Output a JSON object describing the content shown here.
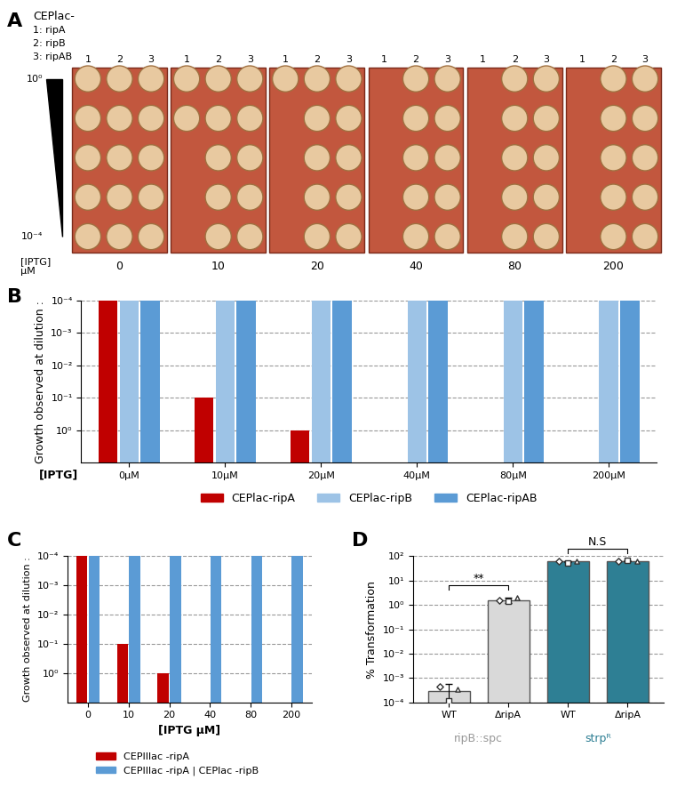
{
  "panel_A": {
    "panel_label": "A",
    "header": "CEPlac-",
    "strains": [
      "1: ripA",
      "2: ripB",
      "3: ripAB"
    ],
    "column_numbers": [
      "1",
      "2",
      "3"
    ],
    "dilution_labels": [
      "10⁰",
      "10⁻⁴"
    ],
    "iptg_label": "[IPTG]\nµM",
    "iptg": [
      0,
      10,
      20,
      40,
      80,
      200
    ]
  },
  "chart_data": [
    {
      "type": "bar",
      "panel_label": "B",
      "categories": [
        "0µM",
        "10µM",
        "20µM",
        "40µM",
        "80µM",
        "200µM"
      ],
      "x_label": "[IPTG]",
      "y_label": "Growth observed at dilution :",
      "log": "y",
      "ylim": [
        10,
        0.0001
      ],
      "yticks": [
        {
          "value": 1,
          "label": "10⁰"
        },
        {
          "value": 0.1,
          "label": "10⁻¹"
        },
        {
          "value": 0.01,
          "label": "10⁻²"
        },
        {
          "value": 0.001,
          "label": "10⁻³"
        },
        {
          "value": 0.0001,
          "label": "10⁻⁴"
        }
      ],
      "grid": true,
      "legend": "bottom",
      "series": [
        {
          "name": "CEPlac-ripA",
          "color": "#c00000",
          "values": [
            0.0001,
            0.1,
            1,
            null,
            null,
            null
          ]
        },
        {
          "name": "CEPlac-ripB",
          "color": "#9dc3e6",
          "values": [
            0.0001,
            0.0001,
            0.0001,
            0.0001,
            0.0001,
            0.0001
          ]
        },
        {
          "name": "CEPlac-ripAB",
          "color": "#5b9bd5",
          "values": [
            0.0001,
            0.0001,
            0.0001,
            0.0001,
            0.0001,
            0.0001
          ]
        }
      ]
    },
    {
      "type": "bar",
      "panel_label": "C",
      "categories": [
        "0",
        "10",
        "20",
        "40",
        "80",
        "200"
      ],
      "x_label": "[IPTG µM]",
      "y_label": "Growth observed at dilution :",
      "log": "y",
      "ylim": [
        10,
        0.0001
      ],
      "yticks": [
        {
          "value": 1,
          "label": "10⁰"
        },
        {
          "value": 0.1,
          "label": "10⁻¹"
        },
        {
          "value": 0.01,
          "label": "10⁻²"
        },
        {
          "value": 0.001,
          "label": "10⁻³"
        },
        {
          "value": 0.0001,
          "label": "10⁻⁴"
        }
      ],
      "grid": true,
      "legend": "bottom",
      "series": [
        {
          "name": "CEPIIlac -ripA",
          "color": "#c00000",
          "values": [
            0.0001,
            0.1,
            1,
            null,
            null,
            null
          ]
        },
        {
          "name": "CEPIIlac -ripA | CEPlac -ripB",
          "color": "#5b9bd5",
          "values": [
            0.0001,
            0.0001,
            0.0001,
            0.0001,
            0.0001,
            0.0001
          ]
        }
      ]
    },
    {
      "type": "bar",
      "panel_label": "D",
      "categories": [
        "WT",
        "ΔripA",
        "WT",
        "ΔripA"
      ],
      "y_label": "% Transformation",
      "log": "y",
      "ylim": [
        0.0001,
        100
      ],
      "yticks": [
        {
          "value": 0.0001,
          "label": "10⁻⁴"
        },
        {
          "value": 0.001,
          "label": "10⁻³"
        },
        {
          "value": 0.01,
          "label": "10⁻²"
        },
        {
          "value": 0.1,
          "label": "10⁻¹"
        },
        {
          "value": 1,
          "label": "10⁰"
        },
        {
          "value": 10,
          "label": "10¹"
        },
        {
          "value": 100,
          "label": "10²"
        }
      ],
      "grid": true,
      "values": [
        0.0003,
        1.6,
        60,
        65
      ],
      "errors": [
        0.00025,
        0.4,
        4,
        3
      ],
      "points": [
        [
          0.00045,
          0.00012,
          0.00035
        ],
        [
          1.5,
          1.4,
          2.0
        ],
        [
          60,
          55,
          62
        ],
        [
          64,
          66,
          65
        ]
      ],
      "colors": [
        "#d9d9d9",
        "#d9d9d9",
        "#2e7f94",
        "#2e7f94"
      ],
      "groups": [
        {
          "label": "ripB::spc",
          "color": "#999999",
          "members": [
            0,
            1
          ]
        },
        {
          "label": "strpᴿ",
          "color": "#2e7f94",
          "members": [
            2,
            3
          ]
        }
      ],
      "annotations": [
        {
          "text": "**",
          "between": [
            0,
            1
          ]
        },
        {
          "text": "N.S",
          "between": [
            2,
            3
          ]
        }
      ]
    }
  ]
}
